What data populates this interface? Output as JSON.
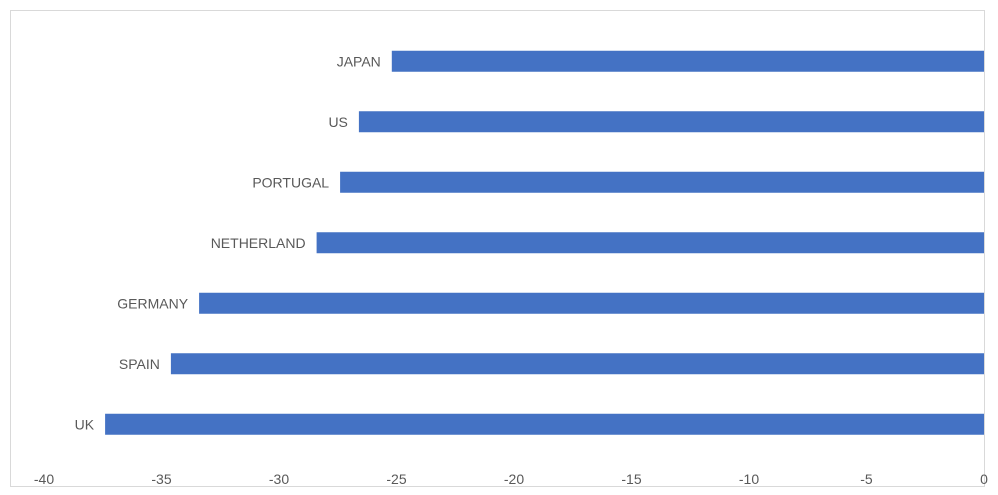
{
  "chart_data": {
    "type": "bar",
    "orientation": "horizontal",
    "categories": [
      "JAPAN",
      "US",
      "PORTUGAL",
      "NETHERLAND",
      "GERMANY",
      "SPAIN",
      "UK"
    ],
    "values": [
      -25.2,
      -26.6,
      -27.4,
      -28.4,
      -33.4,
      -34.6,
      -37.4
    ],
    "title": "",
    "xlabel": "",
    "ylabel": "",
    "xlim": [
      -40,
      0
    ],
    "xticks": [
      "-40",
      "-35",
      "-30",
      "-25",
      "-20",
      "-15",
      "-10",
      "-5",
      "0"
    ],
    "grid": false,
    "legend": "none",
    "colors": {
      "bar": "#4472C4"
    }
  }
}
